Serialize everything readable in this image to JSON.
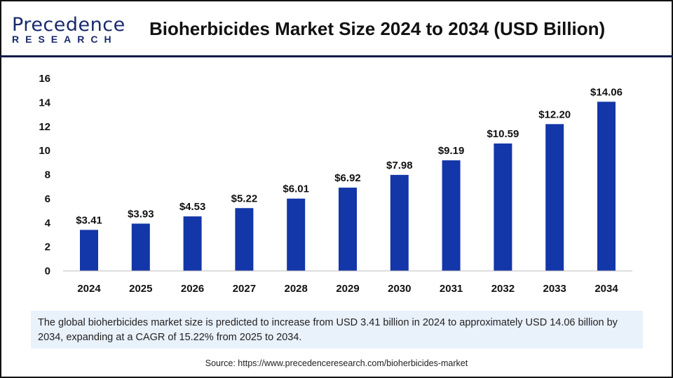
{
  "logo": {
    "line1": "Precedence",
    "line2": "RESEARCH"
  },
  "title": "Bioherbicides Market Size 2024 to 2034 (USD Billion)",
  "colors": {
    "bar": "#1336a8",
    "header_line": "#0e1a4a",
    "summary_bg": "#e9f1fb"
  },
  "chart_data": {
    "type": "bar",
    "title": "Bioherbicides Market Size 2024 to 2034 (USD Billion)",
    "categories": [
      "2024",
      "2025",
      "2026",
      "2027",
      "2028",
      "2029",
      "2030",
      "2031",
      "2032",
      "2033",
      "2034"
    ],
    "values": [
      3.41,
      3.93,
      4.53,
      5.22,
      6.01,
      6.92,
      7.98,
      9.19,
      10.59,
      12.2,
      14.06
    ],
    "data_labels": [
      "$3.41",
      "$3.93",
      "$4.53",
      "$5.22",
      "$6.01",
      "$6.92",
      "$7.98",
      "$9.19",
      "$10.59",
      "$12.20",
      "$14.06"
    ],
    "yticks": [
      0,
      2,
      4,
      6,
      8,
      10,
      12,
      14,
      16
    ],
    "ylim": [
      0,
      16
    ],
    "xlabel": "",
    "ylabel": "",
    "grid": false
  },
  "summary": "The global bioherbicides market size is predicted to increase from USD 3.41 billion in 2024 to approximately USD 14.06 billion by 2034, expanding at a CAGR of 15.22% from 2025 to 2034.",
  "source": "Source: https://www.precedenceresearch.com/bioherbicides-market"
}
